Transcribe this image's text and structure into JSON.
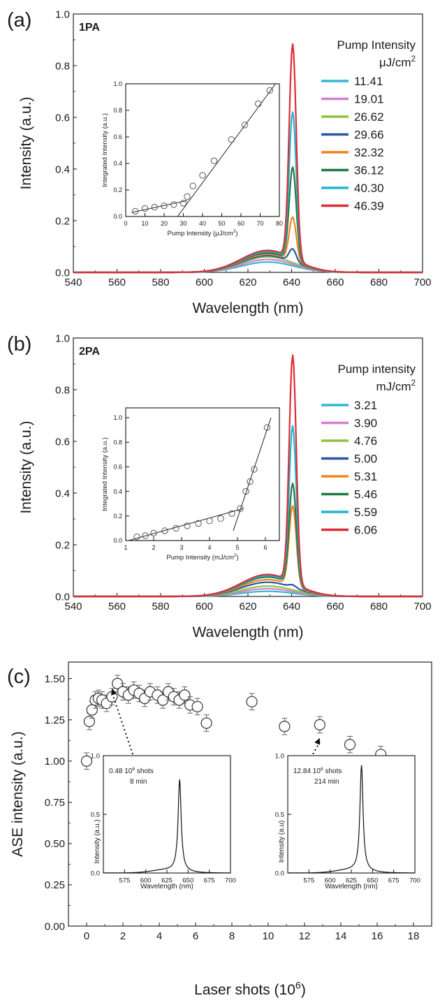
{
  "chart_data": [
    {
      "panel_label": "(a)",
      "type": "line",
      "tag": "1PA",
      "xlabel": "Wavelength (nm)",
      "ylabel": "Intensity (a.u.)",
      "xlim": [
        540,
        700
      ],
      "ylim": [
        0,
        1.0
      ],
      "xticks": [
        "540",
        "560",
        "580",
        "600",
        "620",
        "640",
        "660",
        "680",
        "700"
      ],
      "yticks": [
        "0.0",
        "0.2",
        "0.4",
        "0.6",
        "0.8",
        "1.0"
      ],
      "legend_title": "Pump Intensity",
      "legend_unit": "μJ/cm",
      "legend_unit_sup": "2",
      "legend_position": "right",
      "series": [
        {
          "name": "11.41",
          "color": "#35b6d6",
          "peak": 0.0,
          "bump": 0.04
        },
        {
          "name": "19.01",
          "color": "#d67fd0",
          "peak": 0.0,
          "bump": 0.05
        },
        {
          "name": "26.62",
          "color": "#8cc43c",
          "peak": 0.0,
          "bump": 0.06
        },
        {
          "name": "29.66",
          "color": "#2c55a8",
          "peak": 0.05,
          "bump": 0.065
        },
        {
          "name": "32.32",
          "color": "#f0851c",
          "peak": 0.17,
          "bump": 0.07
        },
        {
          "name": "36.12",
          "color": "#1f7a45",
          "peak": 0.36,
          "bump": 0.075
        },
        {
          "name": "40.30",
          "color": "#1eb6cf",
          "peak": 0.57,
          "bump": 0.08
        },
        {
          "name": "46.39",
          "color": "#e02a36",
          "peak": 0.83,
          "bump": 0.085
        }
      ],
      "inset": {
        "xlabel": "Pump Intensity (μJ/cm",
        "xlabel_sup": "2",
        "xlabel_end": ")",
        "ylabel": "Integrated Intensity (a.u.)",
        "xlim": [
          0,
          80
        ],
        "ylim": [
          0,
          1.0
        ],
        "xticks": [
          "0",
          "10",
          "20",
          "30",
          "40",
          "50",
          "60",
          "70",
          "80"
        ],
        "yticks": [
          "0.0",
          "0.2",
          "0.4",
          "0.6",
          "0.8",
          "1.0"
        ],
        "x": [
          5,
          10,
          15,
          20,
          25,
          30,
          32,
          35,
          40,
          46,
          55,
          62,
          69,
          75
        ],
        "y": [
          0.04,
          0.06,
          0.07,
          0.08,
          0.09,
          0.1,
          0.15,
          0.23,
          0.31,
          0.42,
          0.58,
          0.69,
          0.85,
          0.95
        ],
        "fit_low": [
          [
            3,
            0.03
          ],
          [
            32,
            0.12
          ]
        ],
        "fit_high": [
          [
            27,
            0.0
          ],
          [
            78,
            1.0
          ]
        ]
      }
    },
    {
      "panel_label": "(b)",
      "type": "line",
      "tag": "2PA",
      "xlabel": "Wavelength (nm)",
      "ylabel": "Intensity (a.u.)",
      "xlim": [
        540,
        700
      ],
      "ylim": [
        0,
        1.0
      ],
      "xticks": [
        "540",
        "560",
        "580",
        "600",
        "620",
        "640",
        "660",
        "680",
        "700"
      ],
      "yticks": [
        "0.0",
        "0.2",
        "0.4",
        "0.6",
        "0.8",
        "1.0"
      ],
      "legend_title": "Pump intensity",
      "legend_unit": "mJ/cm",
      "legend_unit_sup": "2",
      "legend_position": "right",
      "series": [
        {
          "name": "3.21",
          "color": "#35b6d6",
          "peak": 0.0,
          "bump": 0.02
        },
        {
          "name": "3.90",
          "color": "#d67fd0",
          "peak": 0.0,
          "bump": 0.03
        },
        {
          "name": "4.76",
          "color": "#8cc43c",
          "peak": 0.0,
          "bump": 0.04
        },
        {
          "name": "5.00",
          "color": "#2c55a8",
          "peak": 0.01,
          "bump": 0.055
        },
        {
          "name": "5.31",
          "color": "#f0851c",
          "peak": 0.31,
          "bump": 0.065
        },
        {
          "name": "5.46",
          "color": "#1f7a45",
          "peak": 0.39,
          "bump": 0.075
        },
        {
          "name": "5.59",
          "color": "#1eb6cf",
          "peak": 0.61,
          "bump": 0.08
        },
        {
          "name": "6.06",
          "color": "#e02a36",
          "peak": 0.88,
          "bump": 0.085
        }
      ],
      "inset": {
        "xlabel": "Pump Intensity (mJ/cm",
        "xlabel_sup": "2",
        "xlabel_end": ")",
        "ylabel": "Integrated Intensity (a.u.)",
        "xlim": [
          1,
          6.5
        ],
        "ylim": [
          0,
          1.08
        ],
        "xticks": [
          "1",
          "2",
          "3",
          "4",
          "5",
          "6"
        ],
        "yticks": [
          "0.0",
          "0.2",
          "0.4",
          "0.6",
          "0.8",
          "1.0"
        ],
        "x": [
          1.4,
          1.7,
          2.0,
          2.4,
          2.8,
          3.2,
          3.6,
          4.0,
          4.4,
          4.8,
          5.1,
          5.3,
          5.45,
          5.6,
          6.06
        ],
        "y": [
          0.03,
          0.04,
          0.06,
          0.08,
          0.1,
          0.12,
          0.14,
          0.16,
          0.18,
          0.22,
          0.26,
          0.4,
          0.48,
          0.58,
          0.92
        ],
        "fit_low": [
          [
            1.1,
            0.0
          ],
          [
            5.2,
            0.26
          ]
        ],
        "fit_high": [
          [
            4.85,
            0.08
          ],
          [
            6.2,
            1.0
          ]
        ]
      }
    },
    {
      "panel_label": "(c)",
      "type": "scatter",
      "xlabel": "Laser shots (10",
      "xlabel_sup": "6",
      "xlabel_end": ")",
      "ylabel": "ASE intensity (a.u.)",
      "xlim": [
        -1,
        19
      ],
      "ylim": [
        0,
        1.6
      ],
      "xticks": [
        "0",
        "2",
        "4",
        "6",
        "8",
        "10",
        "12",
        "14",
        "16",
        "18"
      ],
      "yticks": [
        "0.00",
        "0.25",
        "0.50",
        "0.75",
        "1.00",
        "1.25",
        "1.50"
      ],
      "x": [
        0.0,
        0.15,
        0.3,
        0.48,
        0.65,
        0.85,
        1.1,
        1.4,
        1.7,
        2.0,
        2.3,
        2.6,
        2.9,
        3.2,
        3.5,
        3.9,
        4.2,
        4.5,
        4.8,
        5.1,
        5.4,
        5.7,
        6.1,
        6.6,
        9.1,
        10.9,
        12.84,
        14.5,
        16.2,
        17.7
      ],
      "y": [
        1.0,
        1.24,
        1.31,
        1.37,
        1.38,
        1.37,
        1.35,
        1.39,
        1.47,
        1.42,
        1.4,
        1.43,
        1.41,
        1.38,
        1.42,
        1.4,
        1.37,
        1.42,
        1.39,
        1.37,
        1.4,
        1.34,
        1.33,
        1.23,
        1.36,
        1.21,
        1.22,
        1.1,
        1.04,
        0.98
      ],
      "err": 0.05,
      "insets": [
        {
          "note_line1": "0.48 10",
          "note_sup": "6",
          "note_line1_end": " shots",
          "note_line2": "8 min",
          "xlabel": "Wavelength (nm)",
          "ylabel": "Intensity (a.u.)",
          "xlim": [
            550,
            700
          ],
          "ylim": [
            0,
            1.0
          ],
          "xticks": [
            "575",
            "600",
            "625",
            "650",
            "675",
            "700"
          ],
          "yticks": [
            "0.0",
            "0.5",
            "1.0"
          ],
          "peak_x": 640,
          "peak_y": 0.78,
          "arrow_target": [
            1.4,
            1.44
          ]
        },
        {
          "note_line1": "12.84 10",
          "note_sup": "6",
          "note_line1_end": " shots",
          "note_line2": "214 min",
          "xlabel": "Wavelength (nm)",
          "ylabel": "Intensity (a.u)",
          "xlim": [
            550,
            700
          ],
          "ylim": [
            0,
            1.0
          ],
          "xticks": [
            "575",
            "600",
            "625",
            "650",
            "675",
            "700"
          ],
          "yticks": [
            "0.0",
            "0.5",
            "1.0"
          ],
          "peak_x": 637,
          "peak_y": 0.9,
          "arrow_target": [
            12.84,
            1.14
          ]
        }
      ]
    }
  ]
}
